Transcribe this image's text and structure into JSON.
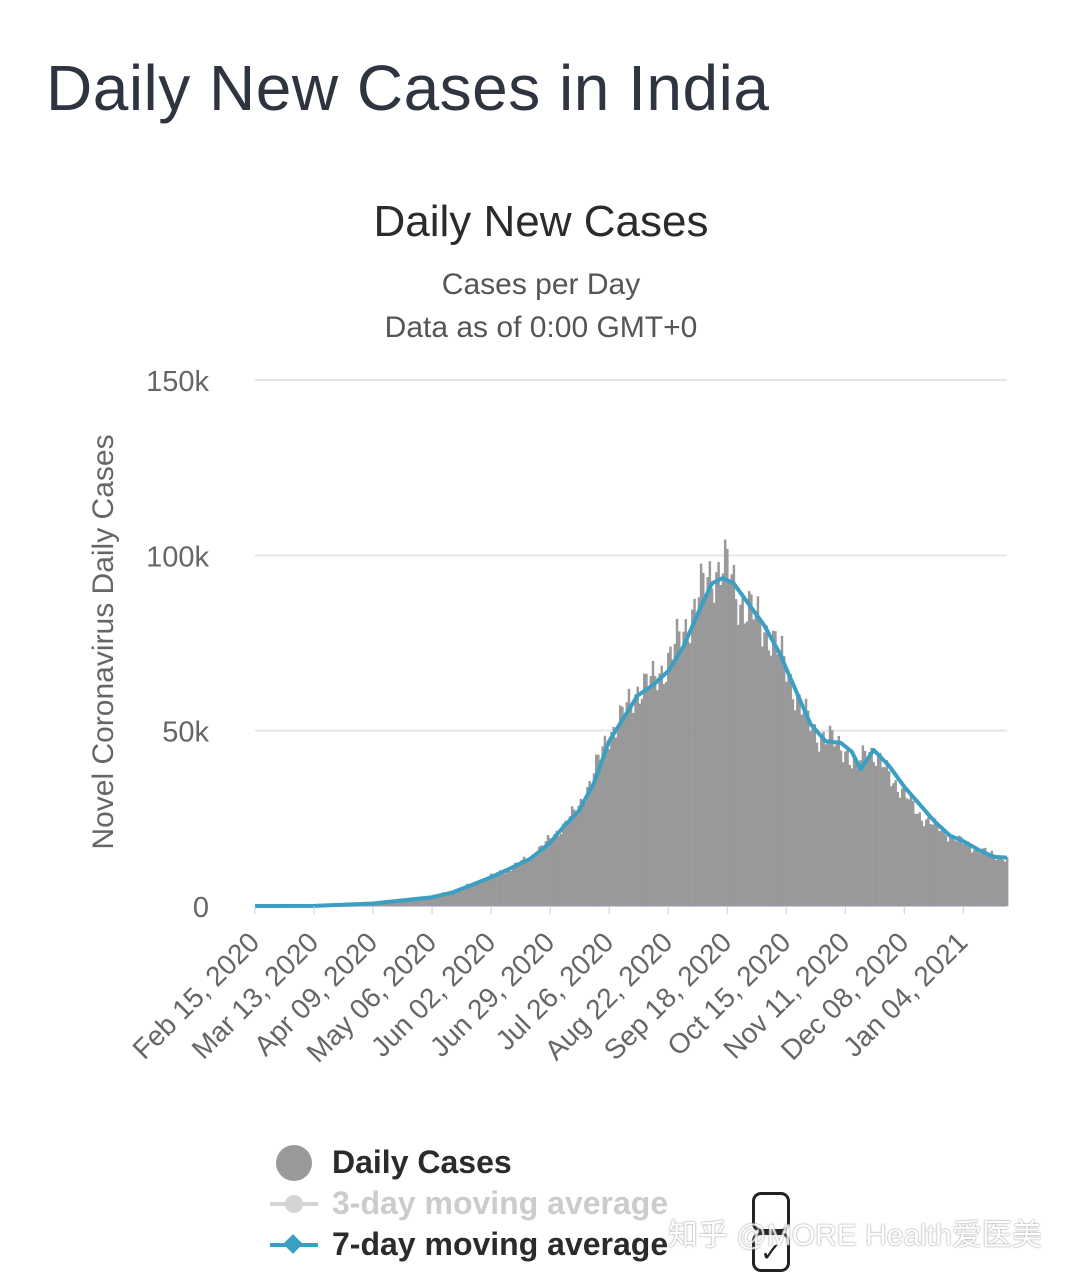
{
  "page": {
    "title": "Daily New Cases in India"
  },
  "chart_data": {
    "type": "bar",
    "title": "Daily New Cases",
    "subtitle_lines": [
      "Cases per Day",
      "Data as of 0:00 GMT+0"
    ],
    "ylabel": "Novel Coronavirus Daily Cases",
    "xlabel": "",
    "ylim": [
      0,
      150000
    ],
    "yticks": [
      0,
      50000,
      100000,
      150000
    ],
    "ytick_labels": [
      "0",
      "50k",
      "100k",
      "150k"
    ],
    "x_start": "2020-02-15",
    "x_end": "2021-01-24",
    "xtick_labels": [
      "Feb 15, 2020",
      "Mar 13, 2020",
      "Apr 09, 2020",
      "May 06, 2020",
      "Jun 02, 2020",
      "Jun 29, 2020",
      "Jul 26, 2020",
      "Aug 22, 2020",
      "Sep 18, 2020",
      "Oct 15, 2020",
      "Nov 11, 2020",
      "Dec 08, 2020",
      "Jan 04, 2021"
    ],
    "grid": true,
    "legend_position": "bottom",
    "colors": {
      "bars": "#999999",
      "avg3": "#cfcfcf",
      "avg7": "#3a9fc3",
      "grid": "#e6e6e6"
    },
    "series": [
      {
        "name": "Daily Cases",
        "type": "bar",
        "points": [
          [
            "2020-02-15",
            0
          ],
          [
            "2020-03-13",
            20
          ],
          [
            "2020-03-25",
            100
          ],
          [
            "2020-04-09",
            700
          ],
          [
            "2020-04-20",
            1300
          ],
          [
            "2020-05-06",
            3000
          ],
          [
            "2020-05-15",
            4000
          ],
          [
            "2020-05-25",
            6500
          ],
          [
            "2020-06-02",
            8500
          ],
          [
            "2020-06-10",
            10500
          ],
          [
            "2020-06-20",
            14000
          ],
          [
            "2020-06-29",
            19000
          ],
          [
            "2020-07-05",
            23000
          ],
          [
            "2020-07-12",
            28000
          ],
          [
            "2020-07-19",
            38000
          ],
          [
            "2020-07-26",
            49000
          ],
          [
            "2020-08-01",
            54000
          ],
          [
            "2020-08-08",
            62000
          ],
          [
            "2020-08-15",
            64000
          ],
          [
            "2020-08-22",
            70000
          ],
          [
            "2020-08-29",
            78000
          ],
          [
            "2020-09-05",
            88000
          ],
          [
            "2020-09-11",
            95000
          ],
          [
            "2020-09-16",
            97000
          ],
          [
            "2020-09-18",
            96000
          ],
          [
            "2020-09-23",
            88000
          ],
          [
            "2020-09-30",
            83000
          ],
          [
            "2020-10-07",
            78000
          ],
          [
            "2020-10-15",
            68000
          ],
          [
            "2020-10-22",
            56000
          ],
          [
            "2020-10-29",
            49000
          ],
          [
            "2020-11-05",
            47000
          ],
          [
            "2020-11-11",
            45000
          ],
          [
            "2020-11-16",
            38000
          ],
          [
            "2020-11-21",
            46000
          ],
          [
            "2020-11-28",
            40000
          ],
          [
            "2020-12-08",
            32000
          ],
          [
            "2020-12-15",
            26000
          ],
          [
            "2020-12-22",
            23000
          ],
          [
            "2020-12-29",
            20000
          ],
          [
            "2021-01-04",
            18000
          ],
          [
            "2021-01-11",
            16000
          ],
          [
            "2021-01-18",
            14500
          ],
          [
            "2021-01-24",
            13500
          ]
        ]
      },
      {
        "name": "3-day moving average",
        "type": "line",
        "visible": false,
        "points": []
      },
      {
        "name": "7-day moving average",
        "type": "line",
        "points": [
          [
            "2020-02-15",
            0
          ],
          [
            "2020-03-13",
            30
          ],
          [
            "2020-04-09",
            700
          ],
          [
            "2020-05-06",
            2500
          ],
          [
            "2020-05-15",
            3800
          ],
          [
            "2020-05-25",
            6200
          ],
          [
            "2020-06-02",
            8200
          ],
          [
            "2020-06-10",
            10500
          ],
          [
            "2020-06-20",
            13500
          ],
          [
            "2020-06-29",
            18000
          ],
          [
            "2020-07-05",
            22500
          ],
          [
            "2020-07-12",
            27000
          ],
          [
            "2020-07-19",
            35000
          ],
          [
            "2020-07-26",
            47000
          ],
          [
            "2020-08-01",
            53000
          ],
          [
            "2020-08-08",
            60000
          ],
          [
            "2020-08-15",
            63000
          ],
          [
            "2020-08-22",
            67000
          ],
          [
            "2020-08-29",
            74000
          ],
          [
            "2020-09-05",
            84000
          ],
          [
            "2020-09-11",
            92000
          ],
          [
            "2020-09-16",
            93500
          ],
          [
            "2020-09-21",
            92000
          ],
          [
            "2020-09-28",
            86000
          ],
          [
            "2020-10-05",
            80000
          ],
          [
            "2020-10-12",
            72000
          ],
          [
            "2020-10-19",
            62000
          ],
          [
            "2020-10-26",
            52000
          ],
          [
            "2020-11-02",
            47000
          ],
          [
            "2020-11-09",
            46500
          ],
          [
            "2020-11-14",
            44000
          ],
          [
            "2020-11-18",
            39000
          ],
          [
            "2020-11-24",
            44500
          ],
          [
            "2020-12-01",
            40000
          ],
          [
            "2020-12-08",
            34000
          ],
          [
            "2020-12-15",
            29000
          ],
          [
            "2020-12-22",
            24000
          ],
          [
            "2020-12-29",
            20000
          ],
          [
            "2021-01-04",
            18500
          ],
          [
            "2021-01-11",
            16000
          ],
          [
            "2021-01-18",
            14000
          ],
          [
            "2021-01-24",
            13800
          ]
        ]
      }
    ]
  },
  "legend": {
    "items": [
      {
        "label": "Daily Cases",
        "enabled": true
      },
      {
        "label": "3-day moving average",
        "enabled": false
      },
      {
        "label": "7-day moving average",
        "enabled": true
      }
    ],
    "checkbox_checked_glyph": "✓"
  },
  "watermark": {
    "text": "知乎 @MORE Health爱医美"
  }
}
